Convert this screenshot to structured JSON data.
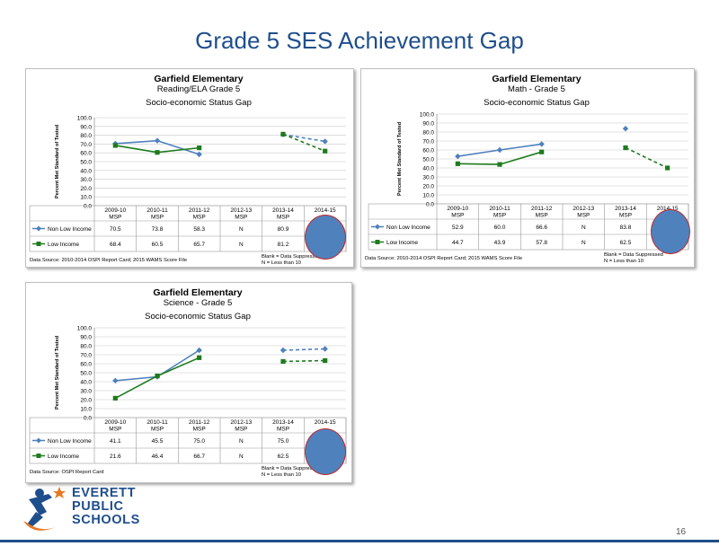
{
  "slide": {
    "title": "Grade 5 SES Achievement Gap",
    "page_number": "16",
    "logo": [
      "EVERETT",
      "PUBLIC",
      "SCHOOLS"
    ]
  },
  "colors": {
    "title": "#1f4e8c",
    "non_low_income": "#4f81bd",
    "low_income": "#1e7b1e",
    "circle": "#4f81bd",
    "circle_border": "#c0282c",
    "footer": "#1f4e8c"
  },
  "chart_data": [
    {
      "type": "line",
      "title": "Garfield Elementary",
      "subtitle": "Reading/ELA  Grade 5",
      "subtitle2": "Socio-economic Status Gap",
      "ylabel": "Percent Met Standard of Tested",
      "ylim": [
        0,
        100
      ],
      "yticks": [
        "100.0",
        "90.0",
        "80.0",
        "70.0",
        "60.0",
        "50.0",
        "40.0",
        "30.0",
        "20.0",
        "10.0",
        "0.0"
      ],
      "categories": [
        "2009-10 MSP",
        "2010-11 MSP",
        "2011-12 MSP",
        "2012-13 MSP",
        "2013-14 MSP",
        "2014-15"
      ],
      "cat_lines": [
        [
          "2009-10",
          "MSP"
        ],
        [
          "2010-11",
          "MSP"
        ],
        [
          "2011-12",
          "MSP"
        ],
        [
          "2012-13",
          "MSP"
        ],
        [
          "2013-14",
          "MSP"
        ],
        [
          "2014-15",
          ""
        ]
      ],
      "series": [
        {
          "name": "Non Low Income",
          "values": [
            70.5,
            73.8,
            58.3,
            null,
            80.9,
            73
          ],
          "table": [
            "70.5",
            "73.8",
            "58.3",
            "N",
            "80.9",
            ""
          ]
        },
        {
          "name": "Low Income",
          "values": [
            68.4,
            60.5,
            65.7,
            null,
            81.2,
            62
          ],
          "table": [
            "68.4",
            "60.5",
            "65.7",
            "N",
            "81.2",
            ""
          ]
        }
      ],
      "source": "Data Source: 2010-2014 OSPI Report Card; 2015 WAMS Score File",
      "note1": "Blank = Data Suppressed",
      "note2": "N = Less than 10",
      "grid": true
    },
    {
      "type": "line",
      "title": "Garfield Elementary",
      "subtitle": "Math - Grade 5",
      "subtitle2": "Socio-economic Status Gap",
      "ylabel": "Percent Met Standard of Tested",
      "ylim": [
        0,
        100
      ],
      "yticks": [
        "100.0",
        "90.0",
        "80.0",
        "70.0",
        "60.0",
        "50.0",
        "40.0",
        "30.0",
        "20.0",
        "10.0",
        "0.0"
      ],
      "categories": [
        "2009-10 MSP",
        "2010-11 MSP",
        "2011-12 MSP",
        "2012-13 MSP",
        "2013-14 MSP",
        "2014-15"
      ],
      "cat_lines": [
        [
          "2009-10",
          "MSP"
        ],
        [
          "2010-11",
          "MSP"
        ],
        [
          "2011-12",
          "MSP"
        ],
        [
          "2012-13",
          "MSP"
        ],
        [
          "2013-14",
          "MSP"
        ],
        [
          "2014-15",
          ""
        ]
      ],
      "series": [
        {
          "name": "Non Low Income",
          "values": [
            52.9,
            60.0,
            66.6,
            null,
            83.8,
            null
          ],
          "table": [
            "52.9",
            "60.0",
            "66.6",
            "N",
            "83.8",
            ""
          ]
        },
        {
          "name": "Low Income",
          "values": [
            44.7,
            43.9,
            57.8,
            null,
            62.5,
            40
          ],
          "table": [
            "44.7",
            "43.9",
            "57.8",
            "N",
            "62.5",
            ""
          ]
        }
      ],
      "source": "Data Source: 2010-2014 OSPI Report Card; 2015 WAMS Score File",
      "note1": "Blank = Data Suppressed",
      "note2": "N = Less than 10",
      "grid": true
    },
    {
      "type": "line",
      "title": "Garfield Elementary",
      "subtitle": "Science - Grade 5",
      "subtitle2": "Socio-economic Status Gap",
      "ylabel": "Percent Met Standard of Tested",
      "ylim": [
        0,
        100
      ],
      "yticks": [
        "100.0",
        "90.0",
        "80.0",
        "70.0",
        "60.0",
        "50.0",
        "40.0",
        "30.0",
        "20.0",
        "10.0",
        "0.0"
      ],
      "categories": [
        "2009-10 MSP",
        "2010-11 MSP",
        "2011-12 MSP",
        "2012-13 MSP",
        "2013-14 MSP",
        "2014-15"
      ],
      "cat_lines": [
        [
          "2009-10",
          "MSP"
        ],
        [
          "2010-11",
          "MSP"
        ],
        [
          "2011-12",
          "MSP"
        ],
        [
          "2012-13",
          "MSP"
        ],
        [
          "2013-14",
          "MSP"
        ],
        [
          "2014-15",
          ""
        ]
      ],
      "series": [
        {
          "name": "Non Low Income",
          "values": [
            41.1,
            45.5,
            75.0,
            null,
            75.0,
            76.5
          ],
          "table": [
            "41.1",
            "45.5",
            "75.0",
            "N",
            "75.0",
            ""
          ]
        },
        {
          "name": "Low Income",
          "values": [
            21.6,
            46.4,
            66.7,
            null,
            62.5,
            63.5
          ],
          "table": [
            "21.6",
            "46.4",
            "66.7",
            "N",
            "62.5",
            ""
          ]
        }
      ],
      "source": "Data Source: OSPI Report Card",
      "note1": "Blank = Data Suppressed",
      "note2": "N = Less than 10",
      "grid": true
    }
  ]
}
